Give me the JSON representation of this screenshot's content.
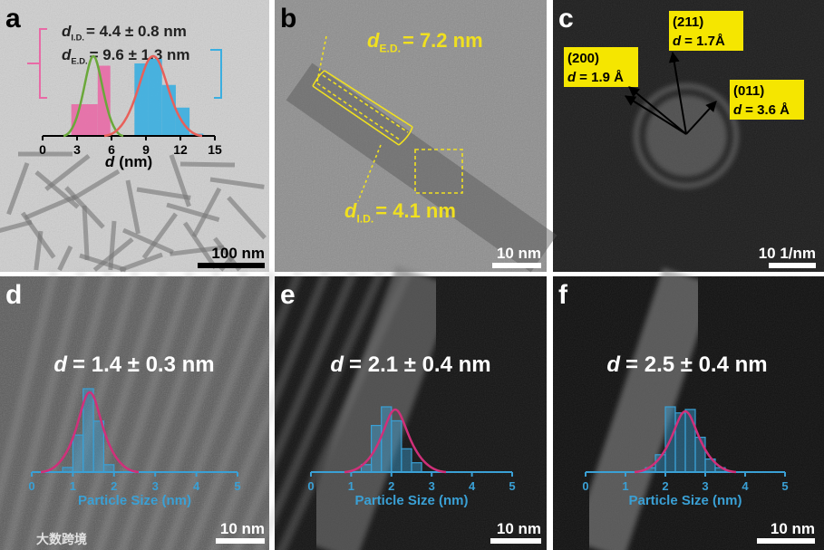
{
  "panels": [
    {
      "label": "a",
      "scale_bar": "100 nm",
      "annotations": [
        {
          "symbol": "d",
          "subscript": "I.D.",
          "text": "= 4.4 ± 0.8 nm"
        },
        {
          "symbol": "d",
          "subscript": "E.D.",
          "text": "= 9.6 ± 1.3 nm"
        }
      ],
      "inset": {
        "type": "histogram",
        "x_label": {
          "symbol": "d",
          "text": "(nm)"
        },
        "xlim": [
          0,
          15
        ],
        "xticks": [
          0,
          3,
          6,
          9,
          12,
          15
        ],
        "series": [
          {
            "color": "#e86aa6",
            "bins": [
              2.5,
              4.8,
              5.9
            ],
            "counts": [
              28,
              62
            ]
          },
          {
            "color": "#3aaee0",
            "bins": [
              8,
              9.2,
              10.4,
              11.6,
              12.8,
              14
            ],
            "counts": [
              64,
              68,
              45,
              25,
              2
            ]
          }
        ]
      }
    },
    {
      "label": "b",
      "scale_bar": "10 nm",
      "annotations": [
        {
          "symbol": "d",
          "subscript": "E.D.",
          "text": "= 7.2 nm"
        },
        {
          "symbol": "d",
          "subscript": "I.D.",
          "text": "= 4.1 nm"
        }
      ]
    },
    {
      "label": "c",
      "scale_bar": "10 1/nm",
      "annotations": [
        {
          "plane": "(211)",
          "symbol": "d",
          "text": "= 1.7Å"
        },
        {
          "plane": "(200)",
          "symbol": "d",
          "text": "= 1.9 Å"
        },
        {
          "plane": "(011)",
          "symbol": "d",
          "text": "= 3.6 Å"
        }
      ]
    },
    {
      "label": "d",
      "scale_bar": "10 nm",
      "annotations": [
        {
          "symbol": "d",
          "text": "= 1.4 ± 0.3 nm"
        }
      ],
      "inset": {
        "type": "histogram",
        "x_label": "Particle Size (nm)",
        "xlim": [
          0,
          5
        ],
        "xticks": [
          0,
          1,
          2,
          3,
          4,
          5
        ],
        "series": [
          {
            "color": "#3aa0d5",
            "bins": [
              0.75,
              1,
              1.25,
              1.5,
              1.75,
              2
            ],
            "counts": [
              5,
              40,
              90,
              55,
              8
            ]
          }
        ]
      }
    },
    {
      "label": "e",
      "scale_bar": "10 nm",
      "annotations": [
        {
          "symbol": "d",
          "text": "= 2.1 ± 0.4 nm"
        }
      ],
      "inset": {
        "type": "histogram",
        "x_label": "Particle Size (nm)",
        "xlim": [
          0,
          5
        ],
        "xticks": [
          0,
          1,
          2,
          3,
          4,
          5
        ],
        "series": [
          {
            "color": "#3aa0d5",
            "bins": [
              1.25,
              1.5,
              1.75,
              2,
              2.25,
              2.5,
              2.75
            ],
            "counts": [
              8,
              50,
              70,
              55,
              25,
              10
            ]
          }
        ]
      }
    },
    {
      "label": "f",
      "scale_bar": "10 nm",
      "annotations": [
        {
          "symbol": "d",
          "text": "= 2.5 ± 0.4 nm"
        }
      ],
      "inset": {
        "type": "histogram",
        "x_label": "Particle Size (nm)",
        "xlim": [
          0,
          5
        ],
        "xticks": [
          0,
          1,
          2,
          3,
          4,
          5
        ],
        "series": [
          {
            "color": "#3aa0d5",
            "bins": [
              1.5,
              1.75,
              2,
              2.25,
              2.5,
              2.75,
              3,
              3.25,
              3.5
            ],
            "counts": [
              5,
              20,
              75,
              68,
              72,
              40,
              15,
              5
            ]
          }
        ]
      }
    }
  ],
  "watermark": "大数跨境"
}
